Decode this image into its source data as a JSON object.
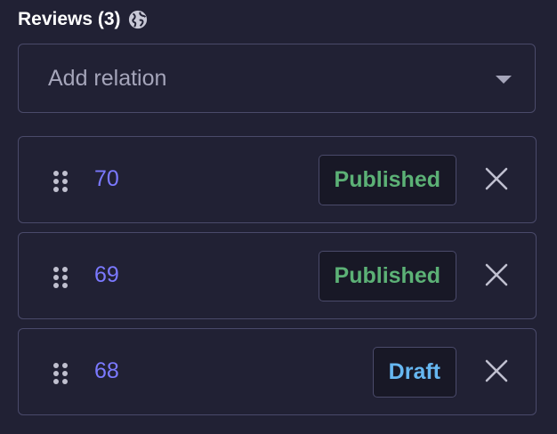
{
  "header": {
    "title": "Reviews (3)",
    "icon": "globe-icon"
  },
  "select": {
    "placeholder": "Add relation",
    "icon": "caret-down-icon"
  },
  "colors": {
    "background": "#212134",
    "published": "#5cb176",
    "draft": "#66b7f1",
    "link": "#7b79ff"
  },
  "relations": [
    {
      "id": "70",
      "status": "Published",
      "status_color": "#5cb176"
    },
    {
      "id": "69",
      "status": "Published",
      "status_color": "#5cb176"
    },
    {
      "id": "68",
      "status": "Draft",
      "status_color": "#66b7f1"
    }
  ]
}
